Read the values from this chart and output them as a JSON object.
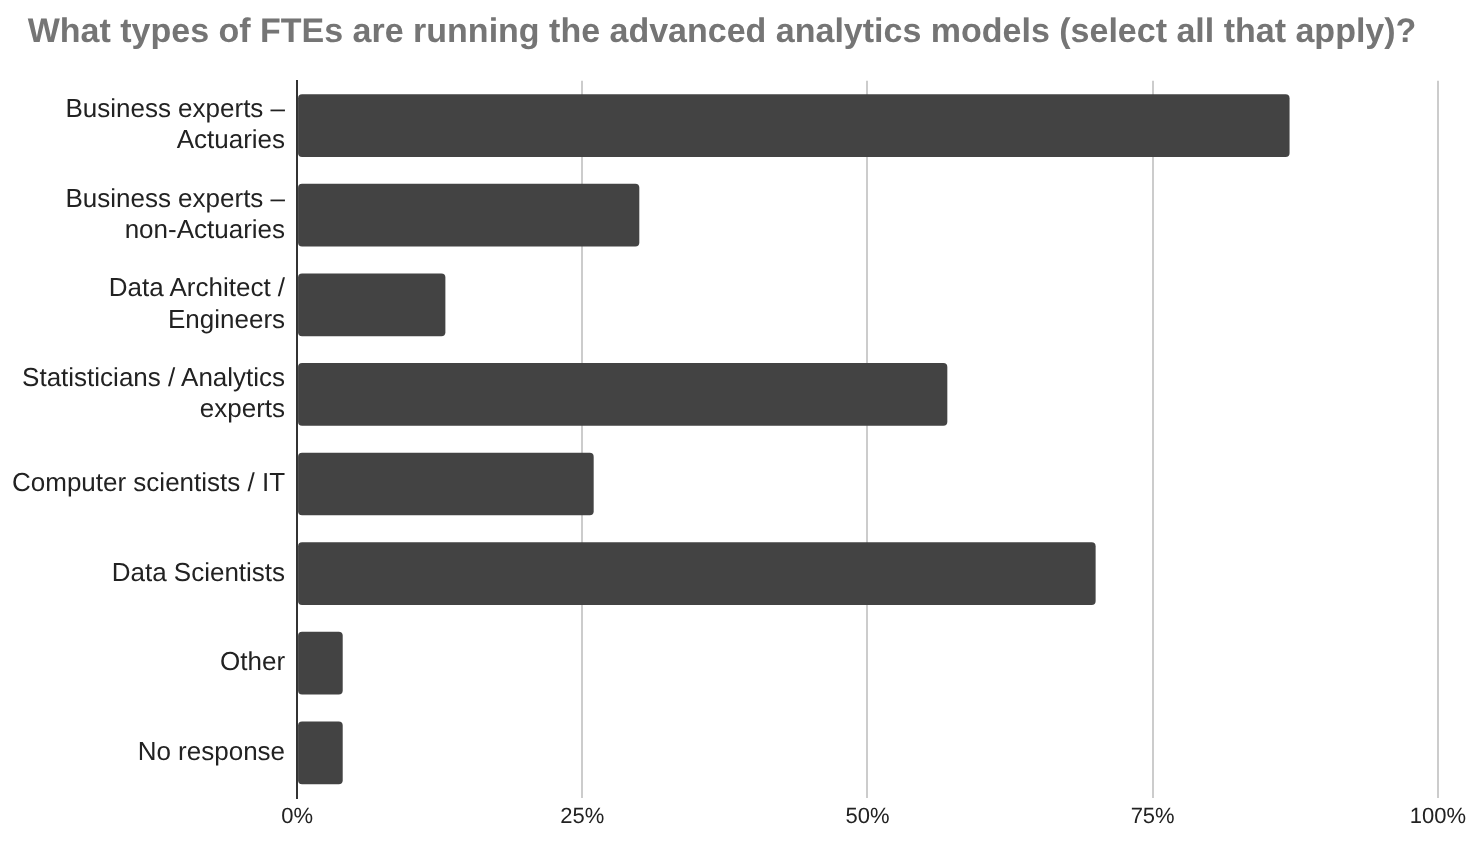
{
  "chart_data": {
    "type": "bar",
    "orientation": "horizontal",
    "title": "What types of FTEs are running the advanced analytics models (select all that apply)?",
    "categories": [
      "Business experts – Actuaries",
      "Business experts – non-Actuaries",
      "Data Architect / Engineers",
      "Statisticians / Analytics experts",
      "Computer scientists / IT",
      "Data Scientists",
      "Other",
      "No response"
    ],
    "values": [
      87,
      30,
      13,
      57,
      26,
      70,
      4,
      4
    ],
    "color": "#434343",
    "xlim": [
      0,
      100
    ],
    "xticks": [
      {
        "value": 0,
        "label": "0%"
      },
      {
        "value": 25,
        "label": "25%"
      },
      {
        "value": 50,
        "label": "50%"
      },
      {
        "value": 75,
        "label": "75%"
      },
      {
        "value": 100,
        "label": "100%"
      }
    ],
    "grid": "x",
    "legend": false
  }
}
